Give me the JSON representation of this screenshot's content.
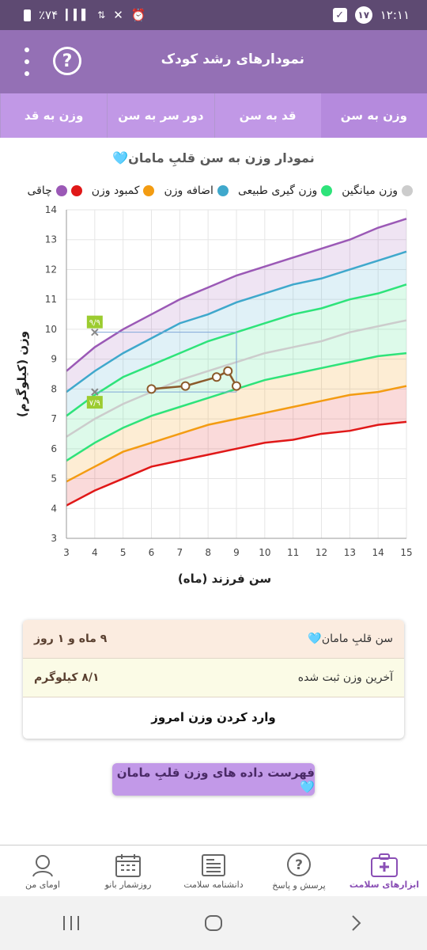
{
  "status_bar": {
    "time": "۱۲:۱۱",
    "notification_count": "۱۷",
    "battery": "٪۷۴"
  },
  "app_bar": {
    "title": "نمودارهای رشد کودک"
  },
  "tabs": [
    {
      "label": "وزن به سن",
      "active": true
    },
    {
      "label": "قد به سن",
      "active": false
    },
    {
      "label": "دور سر به سن",
      "active": false
    },
    {
      "label": "وزن به قد",
      "active": false
    }
  ],
  "chart_title": "نمودار وزن به سن قلبِ مامان🩵",
  "legend": [
    {
      "label": "چاقی",
      "color": "#9b59b6"
    },
    {
      "label": "کمبود وزن",
      "color": "#f39c12"
    },
    {
      "label": "اضافه وزن",
      "color": "#3fa8cc"
    },
    {
      "label": "وزن گیری طبیعی",
      "color": "#2ee37a"
    },
    {
      "label": "وزن میانگین",
      "color": "#cccccc"
    }
  ],
  "legend_red_dot_color": "#e01818",
  "chart_data": {
    "type": "line",
    "xlabel": "سن فرزند (ماه)",
    "ylabel": "وزن (کیلوگرم)",
    "xlim": [
      3,
      15
    ],
    "ylim": [
      3,
      14
    ],
    "x_ticks": [
      "3",
      "4",
      "5",
      "6",
      "7",
      "8",
      "9",
      "10",
      "11",
      "12",
      "13",
      "14",
      "15"
    ],
    "y_ticks": [
      "3",
      "4",
      "5",
      "6",
      "7",
      "8",
      "9",
      "10",
      "11",
      "12",
      "13",
      "14"
    ],
    "x": [
      3,
      4,
      5,
      6,
      7,
      8,
      9,
      10,
      11,
      12,
      13,
      14,
      15
    ],
    "series": [
      {
        "name": "",
        "color": "#9b59b6",
        "values": [
          8.6,
          9.4,
          10.0,
          10.5,
          11.0,
          11.4,
          11.8,
          12.1,
          12.4,
          12.7,
          13.0,
          13.4,
          13.7
        ]
      },
      {
        "name": "",
        "color": "#3fa8cc",
        "values": [
          7.9,
          8.6,
          9.2,
          9.7,
          10.2,
          10.5,
          10.9,
          11.2,
          11.5,
          11.7,
          12.0,
          12.3,
          12.6
        ]
      },
      {
        "name": "",
        "color": "#2ee37a",
        "values": [
          7.1,
          7.8,
          8.4,
          8.8,
          9.2,
          9.6,
          9.9,
          10.2,
          10.5,
          10.7,
          11.0,
          11.2,
          11.5
        ]
      },
      {
        "name": "",
        "color": "#cccccc",
        "values": [
          6.4,
          7.0,
          7.5,
          7.9,
          8.3,
          8.6,
          8.9,
          9.2,
          9.4,
          9.6,
          9.9,
          10.1,
          10.3
        ]
      },
      {
        "name": "",
        "color": "#2ee37a",
        "values": [
          5.6,
          6.2,
          6.7,
          7.1,
          7.4,
          7.7,
          8.0,
          8.3,
          8.5,
          8.7,
          8.9,
          9.1,
          9.2
        ]
      },
      {
        "name": "",
        "color": "#f39c12",
        "values": [
          4.9,
          5.4,
          5.9,
          6.2,
          6.5,
          6.8,
          7.0,
          7.2,
          7.4,
          7.6,
          7.8,
          7.9,
          8.1
        ]
      },
      {
        "name": "",
        "color": "#e01818",
        "values": [
          4.1,
          4.6,
          5.0,
          5.4,
          5.6,
          5.8,
          6.0,
          6.2,
          6.3,
          6.5,
          6.6,
          6.8,
          6.9
        ]
      }
    ],
    "measured": {
      "color": "#8b5a2b",
      "x": [
        6.0,
        7.2,
        8.3,
        8.7,
        9.0
      ],
      "y": [
        8.0,
        8.1,
        8.4,
        8.6,
        8.1
      ]
    },
    "markers": [
      {
        "x": 4,
        "y": 9.9,
        "label": "۹/۹",
        "label_color": "#9ccc30"
      },
      {
        "x": 4,
        "y": 7.9,
        "label": "۷/۹",
        "label_color": "#9ccc30"
      }
    ],
    "guide_x": 9,
    "grid": true
  },
  "summary": {
    "age_label": "سن قلبِ مامان🩵",
    "age_value": "۹ ماه و ۱ روز",
    "weight_label": "آخرین وزن ثبت شده",
    "weight_value": "۸/۱ کیلوگرم",
    "enter_weight_button": "وارد کردن وزن امروز"
  },
  "list_button": "فهرست داده های وزن قلبِ مامان🩵",
  "bottom_nav": [
    {
      "label": "ابزارهای سلامت",
      "icon": "health-kit-icon",
      "active": true
    },
    {
      "label": "پرسش و پاسخ",
      "icon": "question-bubble-icon",
      "active": false
    },
    {
      "label": "دانشنامه سلامت",
      "icon": "encyclopedia-icon",
      "active": false
    },
    {
      "label": "روزشمار بانو",
      "icon": "calendar-icon",
      "active": false
    },
    {
      "label": "اومای من",
      "icon": "user-profile-icon",
      "active": false
    }
  ]
}
